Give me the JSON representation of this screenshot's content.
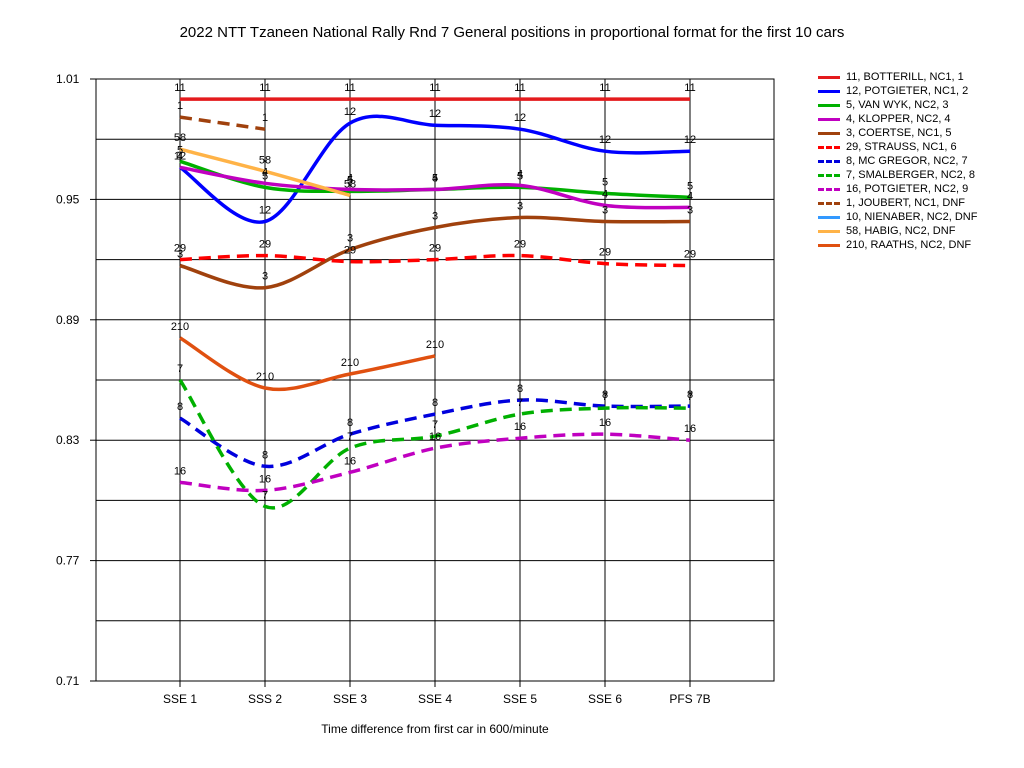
{
  "chart_data": {
    "type": "line",
    "title": "2022 NTT Tzaneen National Rally Rnd 7  General positions in proportional format for the first 10 cars",
    "xlabel": "Time difference from first car in 600/minute",
    "ylabel": "",
    "categories": [
      "SSE 1",
      "SSS 2",
      "SSE 3",
      "SSE 4",
      "SSE 5",
      "SSE 6",
      "PFS 7B"
    ],
    "y_ticks": [
      "1.01",
      "0.95",
      "0.89",
      "0.83",
      "0.77",
      "0.71"
    ],
    "ylim": [
      0.71,
      1.01
    ],
    "grid": true,
    "legend_position": "right",
    "series": [
      {
        "name": "11, BOTTERILL, NC1, 1",
        "label": "11",
        "color": "#e41a1c",
        "dashed": false,
        "values": [
          1.0,
          1.0,
          1.0,
          1.0,
          1.0,
          1.0,
          1.0
        ]
      },
      {
        "name": "12, POTGIETER, NC1, 2",
        "label": "12",
        "color": "#0000ff",
        "dashed": false,
        "values": [
          0.966,
          0.939,
          0.988,
          0.987,
          0.985,
          0.974,
          0.974
        ]
      },
      {
        "name": "5, VAN WYK, NC2, 3",
        "label": "5",
        "color": "#00b000",
        "dashed": false,
        "values": [
          0.969,
          0.956,
          0.954,
          0.955,
          0.956,
          0.953,
          0.951
        ]
      },
      {
        "name": "4, KLOPPER, NC2, 4",
        "label": "4",
        "color": "#c000c0",
        "dashed": false,
        "values": [
          0.966,
          0.958,
          0.955,
          0.955,
          0.957,
          0.947,
          0.946
        ]
      },
      {
        "name": "3, COERTSE, NC1, 5",
        "label": "3",
        "color": "#a0410d",
        "dashed": false,
        "values": [
          0.917,
          0.906,
          0.925,
          0.936,
          0.941,
          0.939,
          0.939
        ]
      },
      {
        "name": "29, STRAUSS, NC1, 6",
        "label": "29",
        "color": "#ff0000",
        "dashed": true,
        "values": [
          0.92,
          0.922,
          0.919,
          0.92,
          0.922,
          0.918,
          0.917
        ]
      },
      {
        "name": "8, MC GREGOR, NC2, 7",
        "label": "8",
        "color": "#0000dd",
        "dashed": true,
        "values": [
          0.841,
          0.817,
          0.833,
          0.843,
          0.85,
          0.847,
          0.847
        ]
      },
      {
        "name": "7, SMALBERGER, NC2, 8",
        "label": "7",
        "color": "#00b000",
        "dashed": true,
        "values": [
          0.86,
          0.797,
          0.826,
          0.832,
          0.843,
          0.846,
          0.846
        ]
      },
      {
        "name": "16, POTGIETER, NC2, 9",
        "label": "16",
        "color": "#c000c0",
        "dashed": true,
        "values": [
          0.809,
          0.805,
          0.814,
          0.826,
          0.831,
          0.833,
          0.83
        ]
      },
      {
        "name": "1, JOUBERT, NC1, DNF",
        "label": "1",
        "color": "#a0410d",
        "dashed": true,
        "values": [
          0.991,
          0.985,
          null,
          null,
          null,
          null,
          null
        ]
      },
      {
        "name": "10, NIENABER, NC2, DNF",
        "label": "10",
        "color": "#3399ff",
        "dashed": false,
        "values": [
          null,
          null,
          null,
          null,
          null,
          null,
          null
        ]
      },
      {
        "name": "58, HABIG, NC2, DNF",
        "label": "58",
        "color": "#ffb347",
        "dashed": false,
        "values": [
          0.975,
          0.964,
          0.952,
          null,
          null,
          null,
          null
        ]
      },
      {
        "name": "210, RAATHS, NC2, DNF",
        "label": "210",
        "color": "#e05010",
        "dashed": false,
        "values": [
          0.881,
          0.856,
          0.863,
          0.872,
          null,
          null,
          null
        ]
      }
    ]
  }
}
